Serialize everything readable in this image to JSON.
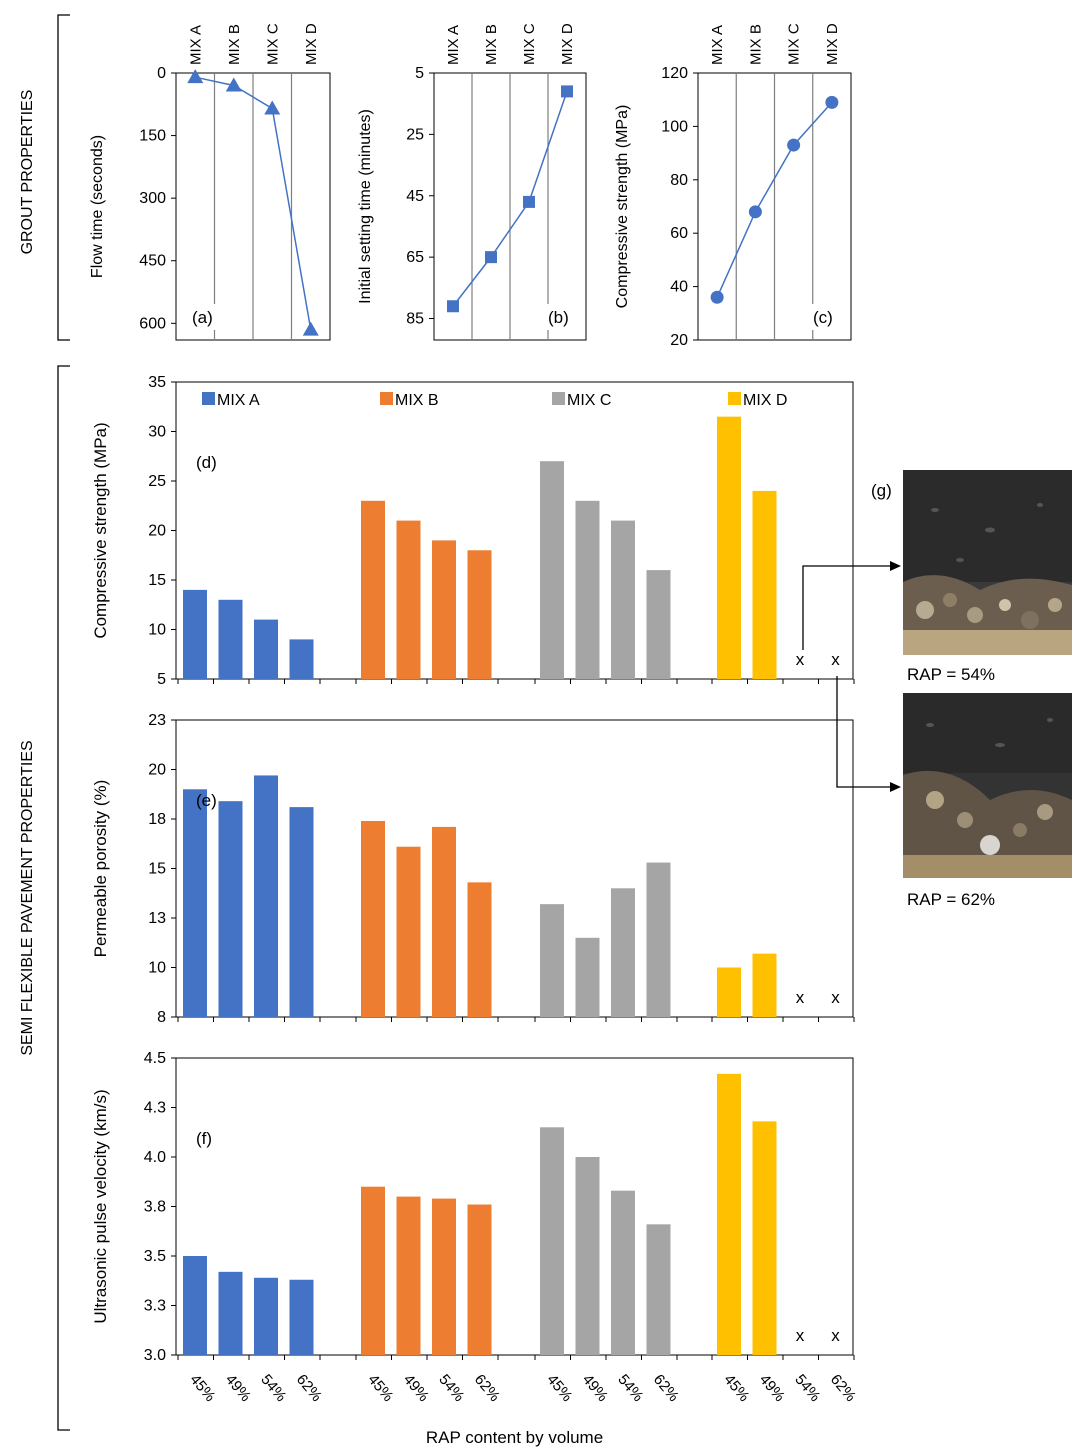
{
  "section_labels": {
    "grout": "GROUT PROPERTIES",
    "sfp": "SEMI FLEXIBLE PAVEMENT PROPERTIES"
  },
  "chart_data": [
    {
      "id": "a",
      "type": "line",
      "panel_label": "(a)",
      "categories": [
        "MIX A",
        "MIX B",
        "MIX C",
        "MIX D"
      ],
      "values": [
        10,
        30,
        85,
        615
      ],
      "ylabel": "Flow time (seconds)",
      "yticks": [
        0,
        150,
        300,
        450,
        600
      ],
      "yreversed": true,
      "ylim": [
        0,
        640
      ],
      "marker": "triangle",
      "color": "#4472C4"
    },
    {
      "id": "b",
      "type": "line",
      "panel_label": "(b)",
      "categories": [
        "MIX A",
        "MIX B",
        "MIX C",
        "MIX D"
      ],
      "values": [
        81,
        65,
        47,
        11
      ],
      "ylabel": "Initial setting time (minutes)",
      "yticks": [
        5,
        25,
        45,
        65,
        85
      ],
      "yreversed": true,
      "ylim": [
        5,
        92
      ],
      "marker": "square",
      "color": "#4472C4"
    },
    {
      "id": "c",
      "type": "line",
      "panel_label": "(c)",
      "categories": [
        "MIX A",
        "MIX B",
        "MIX C",
        "MIX D"
      ],
      "values": [
        36,
        68,
        93,
        109
      ],
      "ylabel": "Compressive strength (MPa)",
      "yticks": [
        20,
        40,
        60,
        80,
        100,
        120
      ],
      "ylim": [
        20,
        120
      ],
      "marker": "circle",
      "color": "#4472C4"
    },
    {
      "id": "d",
      "type": "bar",
      "panel_label": "(d)",
      "ylabel": "Compressive strength (MPa)",
      "yticks": [
        5,
        10,
        15,
        20,
        25,
        30,
        35
      ],
      "ylim": [
        5,
        35
      ],
      "series": [
        {
          "name": "MIX A",
          "color": "#4472C4",
          "values": [
            14,
            13,
            11,
            9
          ]
        },
        {
          "name": "MIX B",
          "color": "#ED7D31",
          "values": [
            23,
            21,
            19,
            18
          ]
        },
        {
          "name": "MIX C",
          "color": "#A5A5A5",
          "values": [
            27,
            23,
            21,
            16
          ]
        },
        {
          "name": "MIX D",
          "color": "#FFC000",
          "values": [
            31.5,
            24,
            null,
            null
          ]
        }
      ],
      "missing_marker": "x"
    },
    {
      "id": "e",
      "type": "bar",
      "panel_label": "(e)",
      "ylabel": "Permeable porosity (%)",
      "ytick_labels": [
        "8",
        "10",
        "13",
        "15",
        "18",
        "20",
        "23"
      ],
      "ylim": [
        8,
        23
      ],
      "series": [
        {
          "name": "MIX A",
          "color": "#4472C4",
          "values": [
            19.5,
            18.9,
            20.2,
            18.6
          ]
        },
        {
          "name": "MIX B",
          "color": "#ED7D31",
          "values": [
            17.9,
            16.6,
            17.6,
            14.8
          ]
        },
        {
          "name": "MIX C",
          "color": "#A5A5A5",
          "values": [
            13.7,
            12.0,
            14.5,
            15.8
          ]
        },
        {
          "name": "MIX D",
          "color": "#FFC000",
          "values": [
            10.5,
            11.2,
            null,
            null
          ]
        }
      ],
      "missing_marker": "x"
    },
    {
      "id": "f",
      "type": "bar",
      "panel_label": "(f)",
      "ylabel": "Ultrasonic pulse velocity (km/s)",
      "ytick_labels": [
        "3.0",
        "3.3",
        "3.5",
        "3.8",
        "4.0",
        "4.3",
        "4.5"
      ],
      "ylim": [
        3.0,
        4.5
      ],
      "series": [
        {
          "name": "MIX A",
          "color": "#4472C4",
          "values": [
            3.5,
            3.42,
            3.39,
            3.38
          ]
        },
        {
          "name": "MIX B",
          "color": "#ED7D31",
          "values": [
            3.85,
            3.8,
            3.79,
            3.76
          ]
        },
        {
          "name": "MIX C",
          "color": "#A5A5A5",
          "values": [
            4.15,
            4.0,
            3.83,
            3.66
          ]
        },
        {
          "name": "MIX D",
          "color": "#FFC000",
          "values": [
            4.42,
            4.18,
            null,
            null
          ]
        }
      ],
      "missing_marker": "x",
      "xtick_labels": [
        "45%",
        "49%",
        "54%",
        "62%"
      ],
      "xlabel": "RAP content by volume"
    }
  ],
  "photos": {
    "label": "(g)",
    "captions": [
      "RAP = 54%",
      "RAP = 62%"
    ]
  }
}
